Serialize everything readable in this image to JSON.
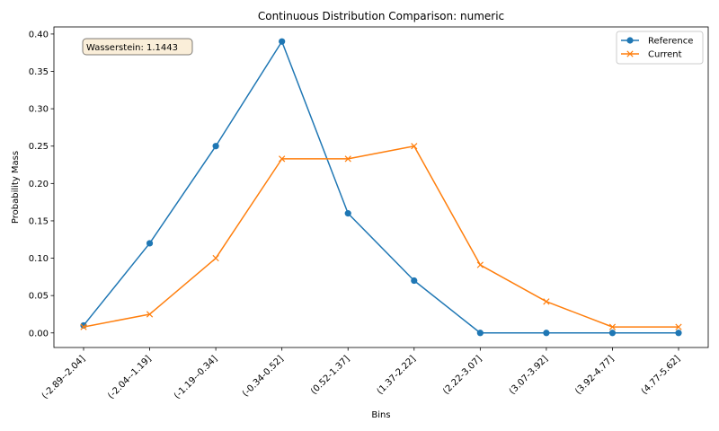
{
  "chart_data": {
    "type": "line",
    "title": "Continuous Distribution Comparison: numeric",
    "xlabel": "Bins",
    "ylabel": "Probability Mass",
    "categories": [
      "(-2.89--2.04]",
      "(-2.04--1.19]",
      "(-1.19--0.34]",
      "(-0.34-0.52]",
      "(0.52-1.37]",
      "(1.37-2.22]",
      "(2.22-3.07]",
      "(3.07-3.92]",
      "(3.92-4.77]",
      "(4.77-5.62]"
    ],
    "series": [
      {
        "name": "Reference",
        "color": "#1f77b4",
        "marker": "circle",
        "values": [
          0.01,
          0.12,
          0.25,
          0.39,
          0.16,
          0.07,
          0.0,
          0.0,
          0.0,
          0.0
        ]
      },
      {
        "name": "Current",
        "color": "#ff7f0e",
        "marker": "x",
        "values": [
          0.008,
          0.025,
          0.1,
          0.233,
          0.233,
          0.25,
          0.091,
          0.042,
          0.008,
          0.008
        ]
      }
    ],
    "ylim": [
      -0.0195,
      0.4095
    ],
    "yticks": [
      0.0,
      0.05,
      0.1,
      0.15,
      0.2,
      0.25,
      0.3,
      0.35,
      0.4
    ],
    "ytick_labels": [
      "0.00",
      "0.05",
      "0.10",
      "0.15",
      "0.20",
      "0.25",
      "0.30",
      "0.35",
      "0.40"
    ],
    "grid": false,
    "legend_position": "top-right",
    "annotation": "Wasserstein: 1.1443"
  }
}
